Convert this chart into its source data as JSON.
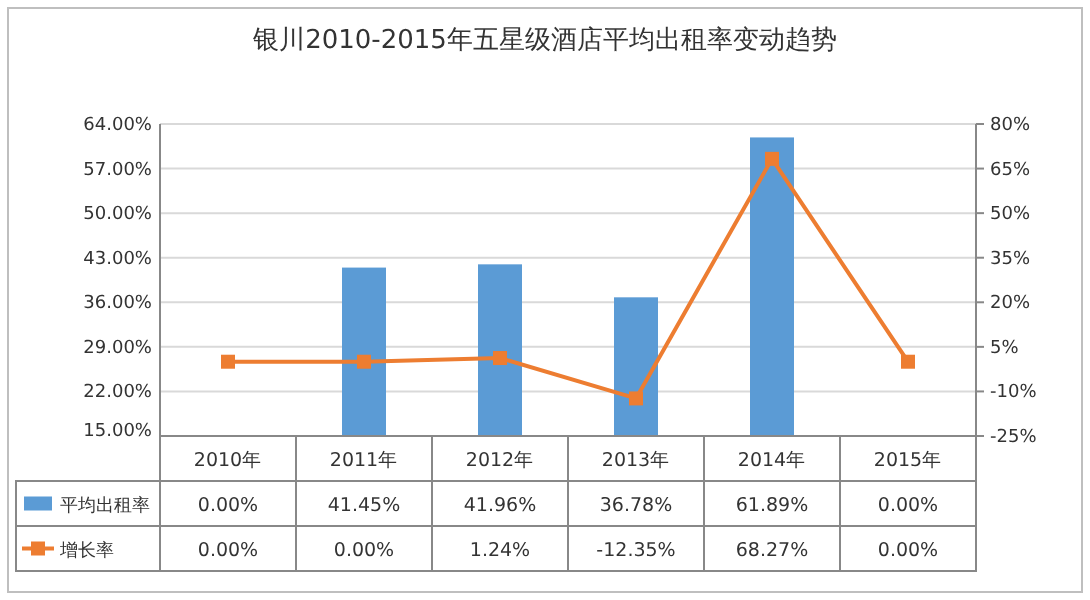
{
  "chart_data": {
    "type": "bar",
    "title": "银川2010-2015年五星级酒店平均出租率变动趋势",
    "categories": [
      "2010年",
      "2011年",
      "2012年",
      "2013年",
      "2014年",
      "2015年"
    ],
    "series": [
      {
        "name": "平均出租率",
        "color": "#5b9bd5",
        "values": [
          null,
          41.45,
          41.96,
          36.78,
          61.89,
          null
        ],
        "value_labels": [
          "0.00%",
          "41.45%",
          "41.96%",
          "36.78%",
          "61.89%",
          "0.00%"
        ]
      },
      {
        "name": "增长率",
        "type": "line",
        "axis": "y2",
        "color": "#ed7d31",
        "marker": "square",
        "values": [
          0.0,
          0.0,
          1.24,
          -12.35,
          68.27,
          0.0
        ],
        "value_labels": [
          "0.00%",
          "0.00%",
          "1.24%",
          "-12.35%",
          "68.27%",
          "0.00%"
        ]
      }
    ],
    "ylim": [
      15,
      64
    ],
    "yticks": [
      {
        "value": 15,
        "label": "15.00%"
      },
      {
        "value": 22,
        "label": "22.00%"
      },
      {
        "value": 29,
        "label": "29.00%"
      },
      {
        "value": 36,
        "label": "36.00%"
      },
      {
        "value": 43,
        "label": "43.00%"
      },
      {
        "value": 50,
        "label": "50.00%"
      },
      {
        "value": 57,
        "label": "57.00%"
      },
      {
        "value": 64,
        "label": "64.00%"
      }
    ],
    "y2lim": [
      -25,
      80
    ],
    "y2ticks": [
      {
        "value": -25,
        "label": "-25%"
      },
      {
        "value": -10,
        "label": "-10%"
      },
      {
        "value": 5,
        "label": "5%"
      },
      {
        "value": 20,
        "label": "20%"
      },
      {
        "value": 35,
        "label": "35%"
      },
      {
        "value": 50,
        "label": "50%"
      },
      {
        "value": 65,
        "label": "65%"
      },
      {
        "value": 80,
        "label": "80%"
      }
    ],
    "grid": "y",
    "legend": "bottom"
  }
}
